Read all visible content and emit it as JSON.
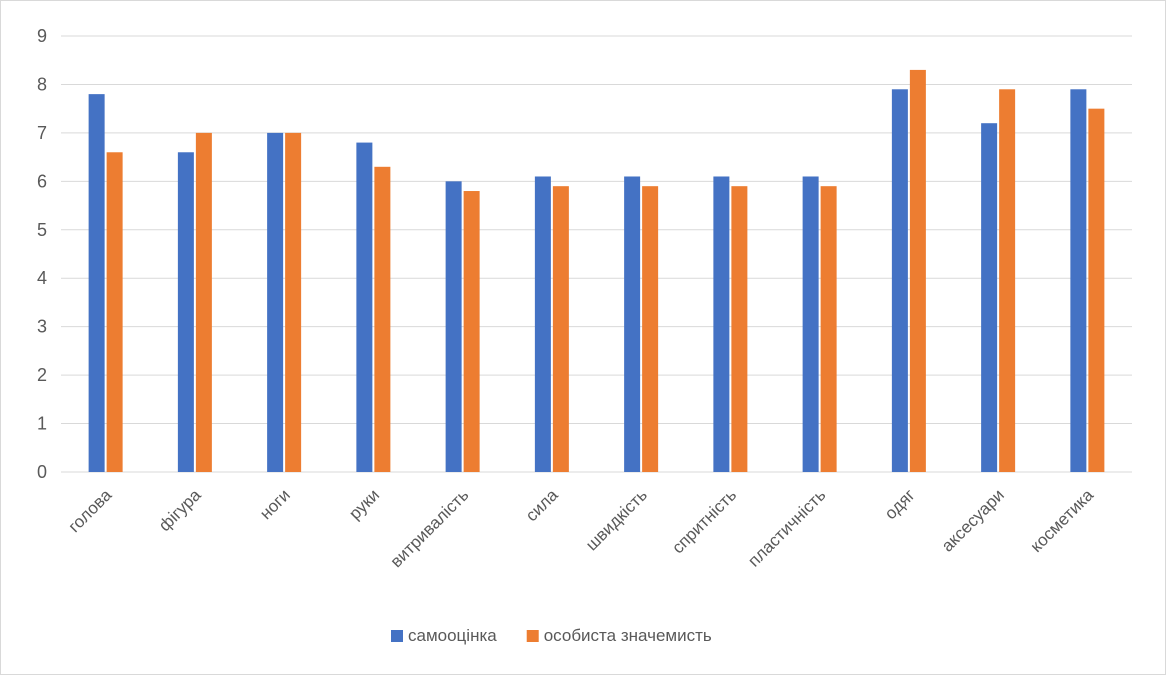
{
  "chart_data": {
    "type": "bar",
    "title": "",
    "xlabel": "",
    "ylabel": "",
    "ylim": [
      0,
      9
    ],
    "yticks": [
      "0",
      "1",
      "2",
      "3",
      "4",
      "5",
      "6",
      "7",
      "8",
      "9"
    ],
    "grid": true,
    "legend_position": "bottom",
    "categories": [
      "голова",
      "фігура",
      "ноги",
      "руки",
      "витривалість",
      "сила",
      "швидкість",
      "спритність",
      "пластичність",
      "одяг",
      "аксесуари",
      "косметика"
    ],
    "series": [
      {
        "name": "самооцінка",
        "color": "#4472c4",
        "values": [
          7.8,
          6.6,
          7.0,
          6.8,
          6.0,
          6.1,
          6.1,
          6.1,
          6.1,
          7.9,
          7.2,
          7.9
        ]
      },
      {
        "name": "особиста значемисть",
        "color": "#ed7d31",
        "values": [
          6.6,
          7.0,
          7.0,
          6.3,
          5.8,
          5.9,
          5.9,
          5.9,
          5.9,
          8.3,
          7.9,
          7.5
        ]
      }
    ],
    "gridline_color": "#d9d9d9"
  }
}
